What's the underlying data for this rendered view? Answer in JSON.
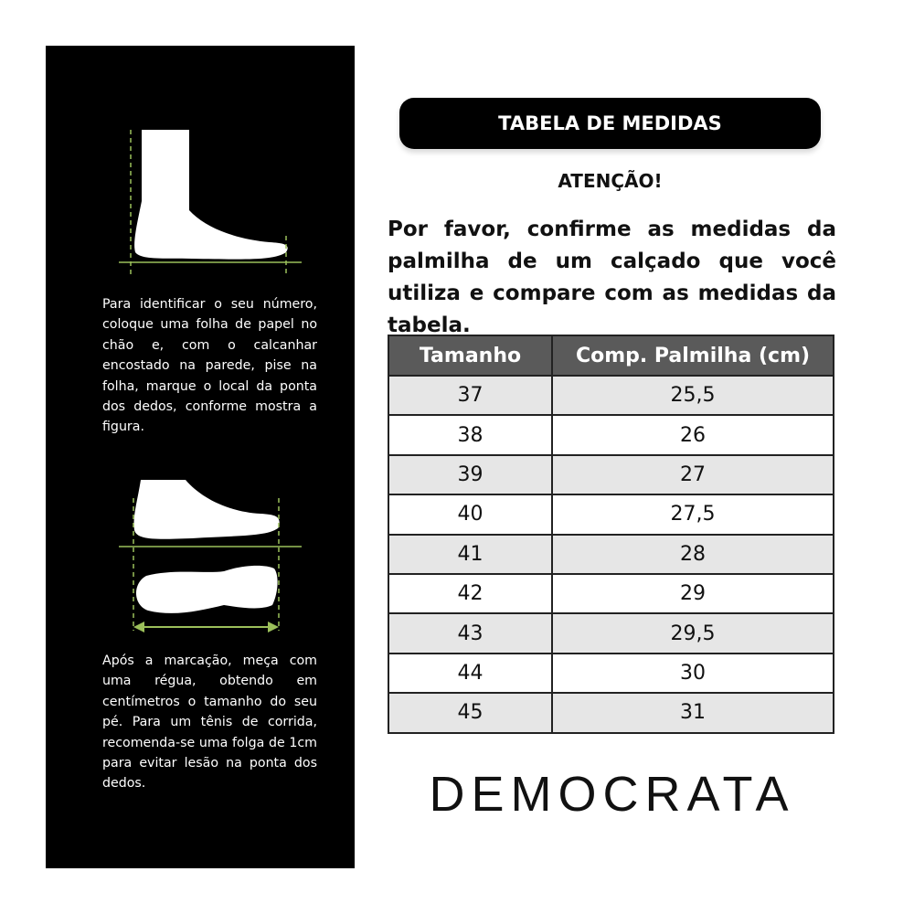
{
  "instructions": {
    "step1": "Para identificar o seu número, coloque uma folha de papel no chão e, com o calcanhar encostado na parede, pise na folha, marque o local da ponta dos dedos, conforme mostra a figura.",
    "step2": "Após a marcação, meça com uma régua, obtendo em centímetros o tamanho do seu pé. Para um tênis de corrida, recomenda-se uma folga de 1cm para evitar lesão na ponta dos dedos."
  },
  "title": "TABELA DE MEDIDAS",
  "attention": "ATENÇÃO!",
  "notice": "Por favor, confirme as medidas da palmilha de um calçado que você utiliza e compare com as medidas da tabela.",
  "table": {
    "headers": [
      "Tamanho",
      "Comp. Palmilha (cm)"
    ],
    "rows": [
      [
        "37",
        "25,5"
      ],
      [
        "38",
        "26"
      ],
      [
        "39",
        "27"
      ],
      [
        "40",
        "27,5"
      ],
      [
        "41",
        "28"
      ],
      [
        "42",
        "29"
      ],
      [
        "43",
        "29,5"
      ],
      [
        "44",
        "30"
      ],
      [
        "45",
        "31"
      ]
    ]
  },
  "brand": "DEMOCRATA",
  "colors": {
    "guide_line": "#9bbf5a",
    "header_bg": "#5a5a5a",
    "row_alt": "#e6e6e6"
  }
}
